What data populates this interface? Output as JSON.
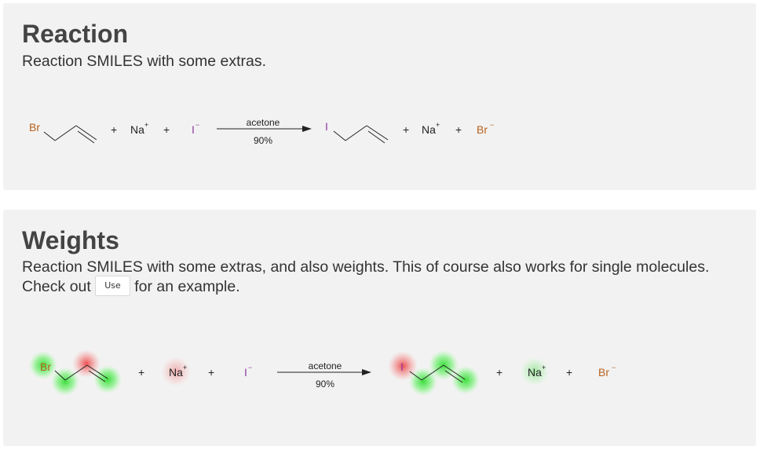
{
  "colors": {
    "bromine": "#b8611d",
    "iodine": "#8e3ea1",
    "bond": "#222222",
    "highlight_positive": "#33dd33",
    "highlight_negative": "#ee4444"
  },
  "sections": {
    "reaction": {
      "title": "Reaction",
      "description": "Reaction SMILES with some extras.",
      "scheme": {
        "reactants": [
          {
            "atoms": [
              "Br"
            ]
          },
          {
            "symbol": "Na",
            "charge": "+"
          },
          {
            "symbol": "I",
            "charge": "−"
          }
        ],
        "plus": "+",
        "arrow": {
          "above": "acetone",
          "below": "90%"
        },
        "products": [
          {
            "atoms": [
              "I"
            ]
          },
          {
            "symbol": "Na",
            "charge": "+"
          },
          {
            "symbol": "Br",
            "charge": "−"
          }
        ]
      }
    },
    "weights": {
      "title": "Weights",
      "description_part1": "Reaction SMILES with some extras, and also weights. This of course also works for single molecules.",
      "description_part2a": "Check out",
      "code_button": "Use",
      "description_part2b": "for an example.",
      "highlights": {
        "allyl_bromide": {
          "Br": "positive",
          "C1": "positive",
          "C2": "negative",
          "C3": "positive"
        },
        "sodium": "negative",
        "allyl_iodide": {
          "I": "negative",
          "C1": "positive",
          "C2": "positive",
          "C3": "positive"
        },
        "sodium_product": "positive"
      }
    }
  }
}
